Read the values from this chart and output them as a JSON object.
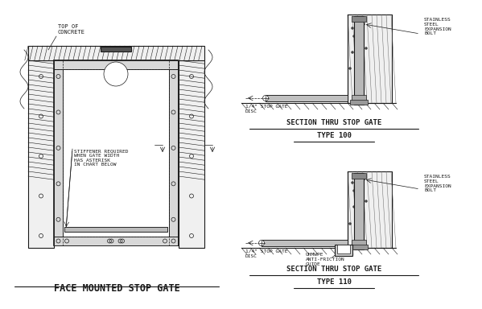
{
  "bg_color": "#ffffff",
  "lc": "#1a1a1a",
  "title_main": "FACE MOUNTED STOP GATE",
  "label_top_concrete": "TOP OF\nCONCRETE",
  "label_stiffener": "STIFFENER REQUIRED\nWHEN GATE WIDTH\nHAS ASTERISK\nIN CHART BELOW",
  "label_ss_bolt_1": "STAINLESS\nSTEEL\nEXPANSION\nBOLT",
  "label_disc_1": "1/4\" STOP GATE\nDISC",
  "label_ss_bolt_2": "STAINLESS\nSTEEL\nEXPANSION\nBOLT",
  "label_disc_2": "1/4\" STOP GATE\nDISC",
  "label_uhmwpe": "UHMWPE\nANTI-FRICTION\nGUIDE",
  "sec1_title_line1": "SECTION THRU STOP GATE",
  "sec1_title_line2": "TYPE 100",
  "sec2_title_line1": "SECTION THRU STOP GATE",
  "sec2_title_line2": "TYPE 110"
}
